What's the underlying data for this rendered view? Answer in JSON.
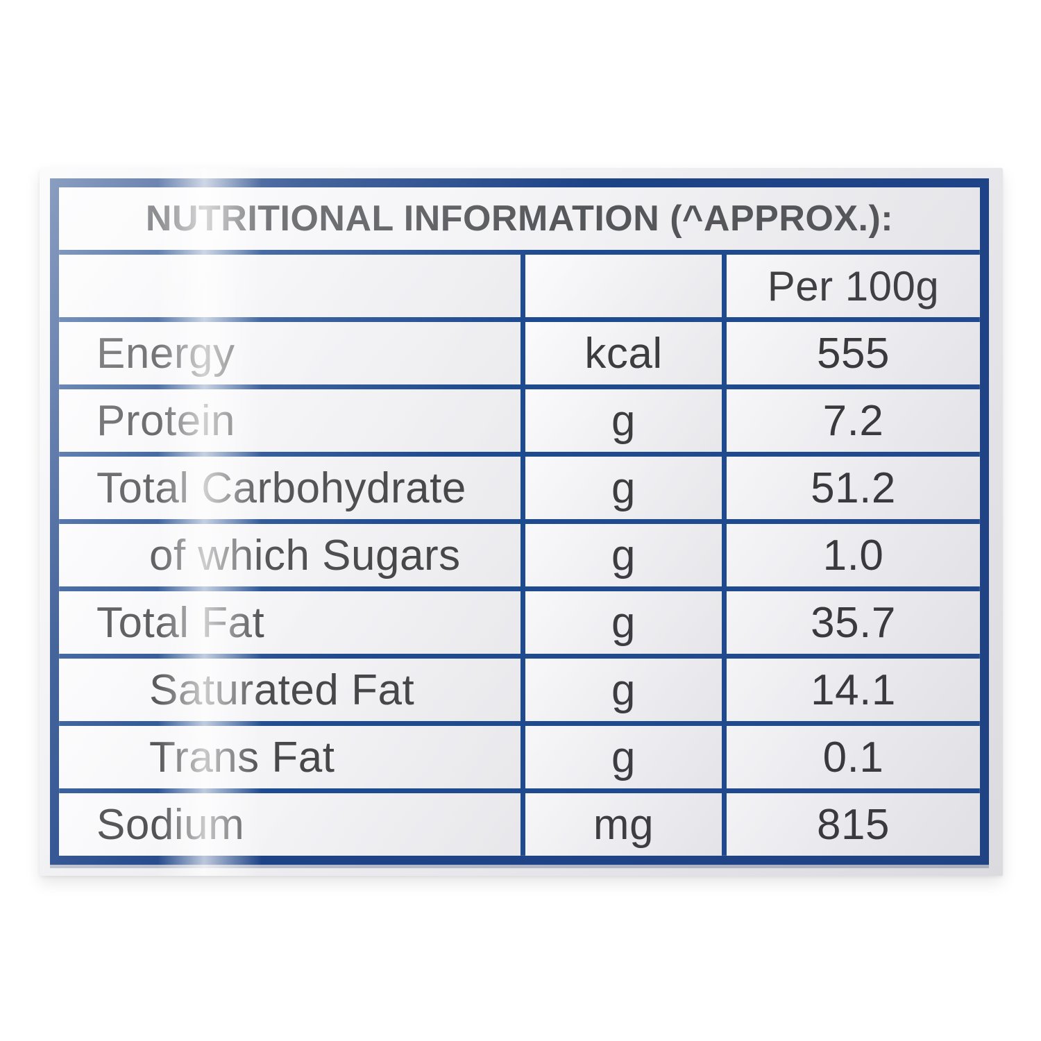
{
  "table": {
    "title": "NUTRITIONAL INFORMATION (^APPROX.):",
    "per_header": "Per 100g",
    "rows": [
      {
        "label": "Energy",
        "unit": "kcal",
        "value": "555"
      },
      {
        "label": "Protein",
        "unit": "g",
        "value": "7.2"
      },
      {
        "label": "Total Carbohydrate",
        "unit": "g",
        "value": "51.2"
      },
      {
        "label": "of which Sugars",
        "unit": "g",
        "value": "1.0"
      },
      {
        "label": "Total Fat",
        "unit": "g",
        "value": "35.7"
      },
      {
        "label": "Saturated Fat",
        "unit": "g",
        "value": "14.1"
      },
      {
        "label": "Trans Fat",
        "unit": "g",
        "value": "0.1"
      },
      {
        "label": "Sodium",
        "unit": "mg",
        "value": "815"
      }
    ]
  },
  "colors": {
    "border_navy": "#1d4387",
    "grid_navy": "#1e4a8f",
    "title_text": "#55565a",
    "body_text": "#47474a",
    "sticker_bg": "#efeff2"
  }
}
